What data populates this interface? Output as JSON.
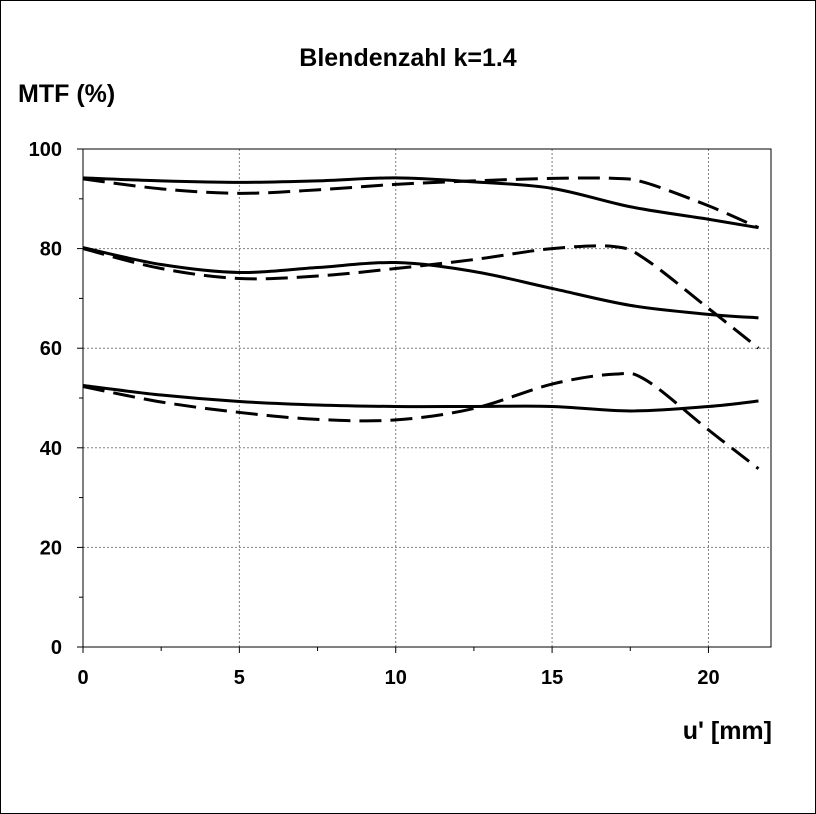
{
  "chart_data": {
    "type": "line",
    "title": "Blendenzahl k=1.4",
    "xlabel": "u' [mm]",
    "ylabel": "MTF (%)",
    "xlim": [
      0,
      22
    ],
    "ylim": [
      0,
      100
    ],
    "x_ticks": [
      0,
      5,
      10,
      15,
      20
    ],
    "y_ticks": [
      0,
      20,
      40,
      60,
      80,
      100
    ],
    "grid": true,
    "legend": "none",
    "series": [
      {
        "style": "solid",
        "x": [
          0,
          2.5,
          5,
          7.5,
          10,
          12.5,
          15,
          17.5,
          20,
          21.6
        ],
        "y": [
          94.2,
          93.6,
          93.3,
          93.6,
          94.2,
          93.4,
          92.1,
          88.4,
          85.9,
          84.2
        ]
      },
      {
        "style": "dashed",
        "x": [
          0,
          2.5,
          5,
          7.5,
          10,
          12.5,
          15,
          17,
          18,
          20,
          21.6
        ],
        "y": [
          94.0,
          92.0,
          91.1,
          91.8,
          92.9,
          93.6,
          94.1,
          94.1,
          93.2,
          88.6,
          84.2
        ]
      },
      {
        "style": "solid",
        "x": [
          0,
          2.5,
          5,
          7.5,
          10,
          12.5,
          15,
          17.5,
          20,
          21.6
        ],
        "y": [
          80.2,
          76.8,
          75.2,
          76.2,
          77.2,
          75.4,
          72.0,
          68.6,
          66.8,
          66.1
        ]
      },
      {
        "style": "dashed",
        "x": [
          0,
          2.5,
          5,
          7.5,
          10,
          12.5,
          15,
          17,
          18,
          20,
          21.6
        ],
        "y": [
          80.0,
          76.0,
          74.0,
          74.5,
          76.0,
          77.8,
          80.0,
          80.4,
          77.8,
          68.0,
          60.0
        ]
      },
      {
        "style": "solid",
        "x": [
          0,
          2.5,
          5,
          7.5,
          10,
          12.5,
          15,
          17.5,
          20,
          21.6
        ],
        "y": [
          52.5,
          50.6,
          49.3,
          48.6,
          48.3,
          48.3,
          48.3,
          47.4,
          48.3,
          49.4
        ]
      },
      {
        "style": "dashed",
        "x": [
          0,
          2.5,
          5,
          7.5,
          10,
          12.5,
          15,
          17,
          18,
          20,
          21.6
        ],
        "y": [
          52.3,
          49.2,
          47.1,
          45.7,
          45.6,
          47.9,
          52.8,
          54.8,
          53.6,
          43.6,
          35.8
        ]
      }
    ]
  }
}
